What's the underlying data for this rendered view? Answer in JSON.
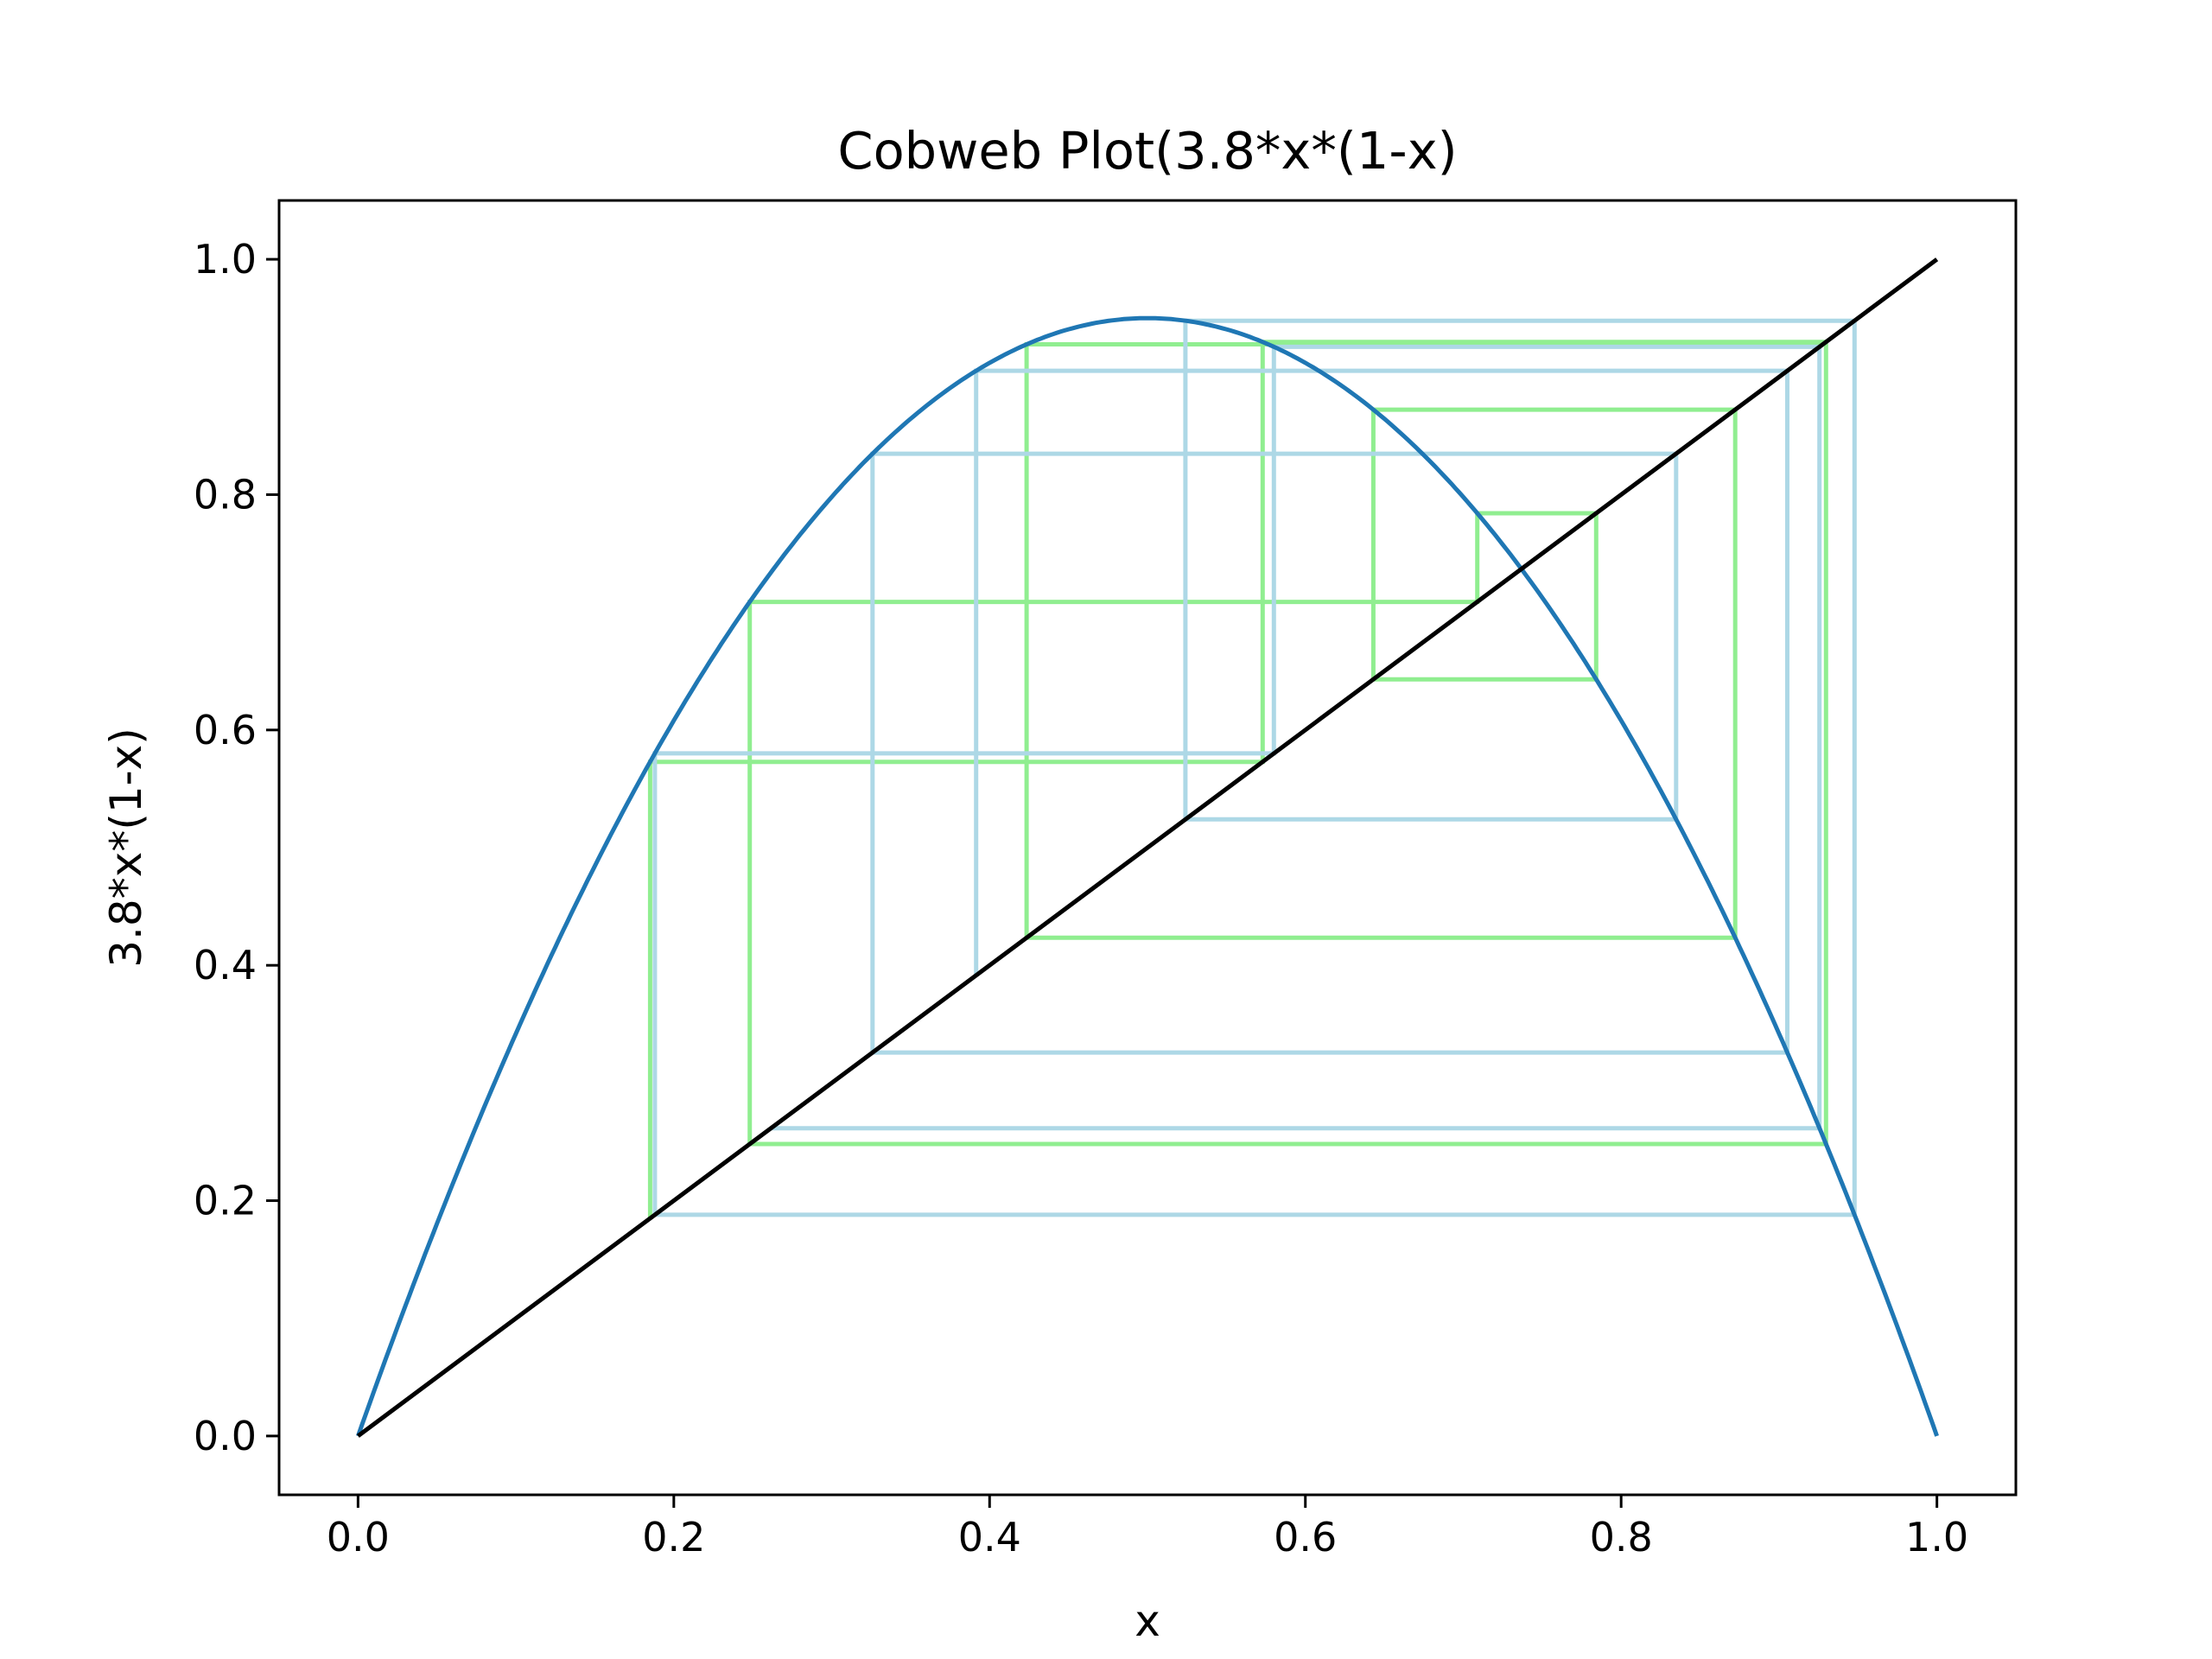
{
  "chart_data": {
    "type": "line",
    "title": "Cobweb Plot(3.8*x*(1-x)",
    "xlabel": "x",
    "ylabel": "3.8*x*(1-x)",
    "xlim": [
      -0.05,
      1.05
    ],
    "ylim": [
      -0.05,
      1.05
    ],
    "xticks": [
      0.0,
      0.2,
      0.4,
      0.6,
      0.8,
      1.0
    ],
    "xtick_labels": [
      "0.0",
      "0.2",
      "0.4",
      "0.6",
      "0.8",
      "1.0"
    ],
    "yticks": [
      0.0,
      0.2,
      0.4,
      0.6,
      0.8,
      1.0
    ],
    "ytick_labels": [
      "0.0",
      "0.2",
      "0.4",
      "0.6",
      "0.8",
      "1.0"
    ],
    "grid": false,
    "legend": false,
    "map": {
      "function": "3.8*x*(1-x)",
      "r": 3.8,
      "x_range": [
        0,
        1
      ],
      "color": "#1f77b4"
    },
    "diagonal": {
      "points": [
        [
          0,
          0
        ],
        [
          1,
          1
        ]
      ],
      "color": "#000000"
    },
    "cobwebs": [
      {
        "x0": 0.185,
        "iterations": 9,
        "color": "#90ee90"
      },
      {
        "x0": 0.3915,
        "iterations": 9,
        "color": "#add8e6"
      }
    ]
  }
}
